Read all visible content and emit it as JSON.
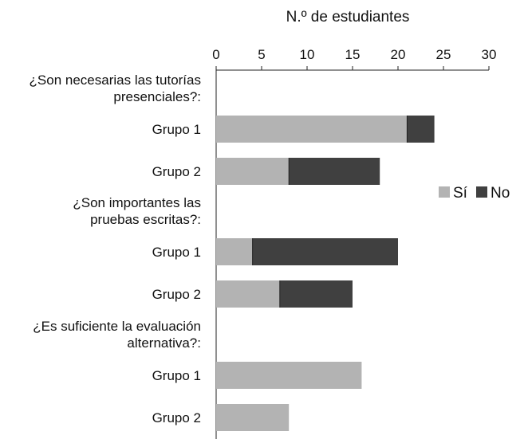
{
  "chart_data": {
    "type": "bar",
    "orientation": "horizontal",
    "stacked": true,
    "xlabel": "N.º de estudiantes",
    "xlim": [
      0,
      30
    ],
    "xticks": [
      0,
      5,
      10,
      15,
      20,
      25,
      30
    ],
    "groups": [
      {
        "question": [
          "¿Son necesarias las tutorías",
          "presenciales?:"
        ],
        "rows": [
          {
            "label": "Grupo 1",
            "values": [
              21,
              3
            ]
          },
          {
            "label": "Grupo 2",
            "values": [
              8,
              10
            ]
          }
        ]
      },
      {
        "question": [
          "¿Son importantes las",
          "pruebas escritas?:"
        ],
        "rows": [
          {
            "label": "Grupo 1",
            "values": [
              4,
              16
            ]
          },
          {
            "label": "Grupo 2",
            "values": [
              7,
              8
            ]
          }
        ]
      },
      {
        "question": [
          "¿Es suficiente la evaluación",
          "alternativa?:"
        ],
        "rows": [
          {
            "label": "Grupo 1",
            "values": [
              16,
              0
            ]
          },
          {
            "label": "Grupo 2",
            "values": [
              8,
              0
            ]
          }
        ]
      }
    ],
    "series": [
      {
        "name": "Sí",
        "color": "#b3b3b3"
      },
      {
        "name": "No",
        "color": "#404040"
      }
    ],
    "legend": "right",
    "grid": false
  }
}
